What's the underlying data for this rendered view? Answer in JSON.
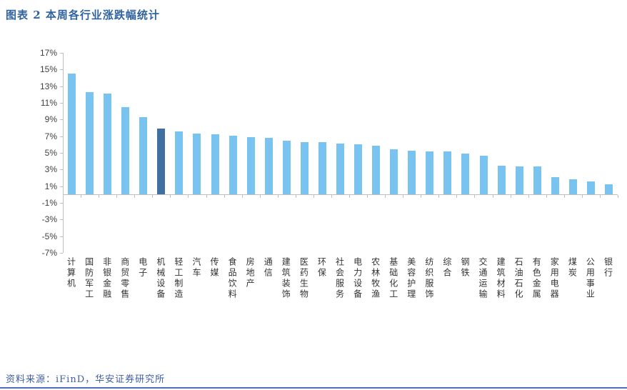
{
  "title": "图表 2 本周各行业涨跌幅统计",
  "source_note": "资料来源：iFinD，华安证券研究所",
  "colors": {
    "bar": "#79C3F0",
    "highlight_bar": "#40709F",
    "axis": "#BFBFBF",
    "tick_text": "#404040",
    "category_text": "#333333",
    "title_text": "#30639E",
    "source_text": "#3F5FA5",
    "bottom_rule": "#4F6FBE"
  },
  "chart_data": {
    "type": "bar",
    "title": "本周各行业涨跌幅统计",
    "categories": [
      "计算机",
      "国防军工",
      "非银金融",
      "商贸零售",
      "电子",
      "机械设备",
      "轻工制造",
      "汽车",
      "传媒",
      "食品饮料",
      "房地产",
      "通信",
      "建筑装饰",
      "医药生物",
      "环保",
      "社会服务",
      "电力设备",
      "农林牧渔",
      "基础化工",
      "美容护理",
      "纺织服饰",
      "综合",
      "钢铁",
      "交通运输",
      "建筑材料",
      "石油石化",
      "有色金属",
      "家用电器",
      "煤炭",
      "公用事业",
      "银行"
    ],
    "values": [
      14.5,
      12.3,
      12.1,
      10.5,
      9.3,
      7.9,
      7.6,
      7.3,
      7.2,
      7.1,
      6.9,
      6.8,
      6.5,
      6.3,
      6.3,
      6.1,
      6.0,
      5.9,
      5.4,
      5.3,
      5.2,
      5.2,
      4.9,
      4.7,
      3.5,
      3.4,
      3.4,
      2.1,
      1.8,
      1.6,
      1.2
    ],
    "unit": "%",
    "highlight_index": 5,
    "highlight_category": "机械设备",
    "xlabel": "",
    "ylabel": "",
    "ylim": [
      -7,
      17
    ],
    "ytick_step": 2,
    "yticks": [
      "17%",
      "15%",
      "13%",
      "11%",
      "9%",
      "7%",
      "5%",
      "3%",
      "1%",
      "-1%",
      "-3%",
      "-5%",
      "-7%"
    ],
    "grid": false,
    "legend": "none",
    "bar_orientation": "vertical"
  }
}
